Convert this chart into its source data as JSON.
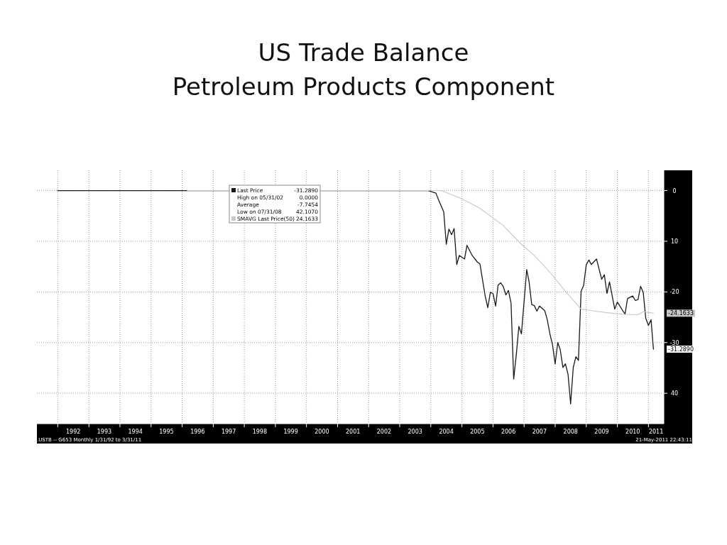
{
  "chart_data": {
    "type": "line",
    "title": "US Trade Balance",
    "subtitle": "Petroleum Products Component",
    "xlim": [
      "1991-05",
      "2011-07"
    ],
    "xticks": [
      {
        "value": "1992-01",
        "label": null
      },
      {
        "value": "1992-07",
        "label": "1992"
      },
      {
        "value": "1993-01",
        "label": null
      },
      {
        "value": "1993-07",
        "label": "1993"
      },
      {
        "value": "1994-01",
        "label": null
      },
      {
        "value": "1994-07",
        "label": "1994"
      },
      {
        "value": "1995-01",
        "label": null
      },
      {
        "value": "1995-07",
        "label": "1995"
      },
      {
        "value": "1996-01",
        "label": null
      },
      {
        "value": "1996-07",
        "label": "1996"
      },
      {
        "value": "1997-01",
        "label": null
      },
      {
        "value": "1997-07",
        "label": "1997"
      },
      {
        "value": "1998-01",
        "label": null
      },
      {
        "value": "1998-07",
        "label": "1998"
      },
      {
        "value": "1999-01",
        "label": null
      },
      {
        "value": "1999-07",
        "label": "1999"
      },
      {
        "value": "2000-01",
        "label": null
      },
      {
        "value": "2000-07",
        "label": "2000"
      },
      {
        "value": "2001-01",
        "label": null
      },
      {
        "value": "2001-07",
        "label": "2001"
      },
      {
        "value": "2002-01",
        "label": null
      },
      {
        "value": "2002-07",
        "label": "2002"
      },
      {
        "value": "2003-01",
        "label": null
      },
      {
        "value": "2003-07",
        "label": "2003"
      },
      {
        "value": "2004-01",
        "label": null
      },
      {
        "value": "2004-07",
        "label": "2004"
      },
      {
        "value": "2005-01",
        "label": null
      },
      {
        "value": "2005-07",
        "label": "2005"
      },
      {
        "value": "2006-01",
        "label": null
      },
      {
        "value": "2006-07",
        "label": "2006"
      },
      {
        "value": "2007-01",
        "label": null
      },
      {
        "value": "2007-07",
        "label": "2007"
      },
      {
        "value": "2008-01",
        "label": null
      },
      {
        "value": "2008-07",
        "label": "2008"
      },
      {
        "value": "2009-01",
        "label": null
      },
      {
        "value": "2009-07",
        "label": "2009"
      },
      {
        "value": "2010-01",
        "label": null
      },
      {
        "value": "2010-07",
        "label": "2010"
      },
      {
        "value": "2011-01",
        "label": null
      },
      {
        "value": "2011-04",
        "label": "2011"
      }
    ],
    "ylim": [
      -46,
      4
    ],
    "yticks": [
      {
        "value": 0,
        "label": "0"
      },
      {
        "value": -10,
        "label": "10"
      },
      {
        "value": -20,
        "label": "-20"
      },
      {
        "value": -30,
        "label": "-30"
      },
      {
        "value": -40,
        "label": "40"
      }
    ],
    "grid": true,
    "legend": "top",
    "line_style": "solid",
    "series": [
      {
        "name": "Last Price",
        "color": "#1a1a1a",
        "x": [
          "1992-01",
          "2003-12",
          "2004-03",
          "2004-04",
          "2004-05",
          "2004-06",
          "2004-07",
          "2004-08",
          "2004-09",
          "2004-10",
          "2004-11",
          "2004-12",
          "2005-02",
          "2005-03",
          "2005-05",
          "2005-07",
          "2005-08",
          "2005-10",
          "2005-11",
          "2005-12",
          "2006-01",
          "2006-02",
          "2006-03",
          "2006-04",
          "2006-05",
          "2006-06",
          "2006-07",
          "2006-08",
          "2006-09",
          "2006-10",
          "2006-11",
          "2006-12",
          "2007-02",
          "2007-03",
          "2007-04",
          "2007-05",
          "2007-06",
          "2007-07",
          "2007-09",
          "2007-10",
          "2007-11",
          "2007-12",
          "2008-01",
          "2008-02",
          "2008-03",
          "2008-04",
          "2008-05",
          "2008-06",
          "2008-07",
          "2008-08",
          "2008-09",
          "2008-10",
          "2008-11",
          "2008-12",
          "2009-01",
          "2009-02",
          "2009-03",
          "2009-05",
          "2009-07",
          "2009-08",
          "2009-09",
          "2009-10",
          "2009-12",
          "2010-01",
          "2010-04",
          "2010-05",
          "2010-07",
          "2010-08",
          "2010-09",
          "2010-10",
          "2010-11",
          "2010-12",
          "2011-01",
          "2011-02",
          "2011-03"
        ],
        "values": [
          0,
          0,
          -0.5,
          -1.8,
          -3,
          -4.2,
          -10.6,
          -7.6,
          -8.7,
          -7.5,
          -14.6,
          -12.8,
          -13.5,
          -10.8,
          -12.8,
          -14.1,
          -14.5,
          -20.8,
          -23.1,
          -20.1,
          -20.3,
          -22.8,
          -18.7,
          -18.2,
          -18.9,
          -20.6,
          -19.7,
          -22.2,
          -37.2,
          -32.5,
          -26.8,
          -28.3,
          -15.6,
          -18,
          -22.5,
          -22.7,
          -23.8,
          -22.8,
          -23.7,
          -25.5,
          -28.3,
          -30.4,
          -34.2,
          -30,
          -31.4,
          -34.9,
          -34.2,
          -36.3,
          -42.1,
          -34.9,
          -32.8,
          -33.5,
          -19.9,
          -18.7,
          -14.6,
          -13.7,
          -14.6,
          -13.5,
          -17.5,
          -16.6,
          -20.3,
          -18,
          -23.4,
          -22,
          -24.4,
          -21.3,
          -20.8,
          -21.7,
          -21.5,
          -18.9,
          -20.1,
          -25.2,
          -26.6,
          -25.5,
          -31.3
        ]
      },
      {
        "name": "SMAVG Last Price(50)",
        "color": "#c8c8c8",
        "x": [
          "1996-03",
          "2004-01",
          "2004-05",
          "2004-12",
          "2005-08",
          "2006-05",
          "2006-12",
          "2007-05",
          "2007-11",
          "2008-05",
          "2008-11",
          "2009-03",
          "2009-09",
          "2010-03",
          "2010-09",
          "2010-11",
          "2011-03"
        ],
        "values": [
          0,
          0,
          0,
          -1.4,
          -3.5,
          -6.9,
          -10.6,
          -12.8,
          -16.1,
          -19.9,
          -23.4,
          -23.7,
          -24.1,
          -24.4,
          -24.5,
          -23.9,
          -24.2
        ]
      }
    ],
    "annotations": [
      "-31.2890",
      "High on 05/31/02",
      "0.0000",
      "Average",
      "-7.7454",
      "Low on 07/31/08",
      "42.1070",
      "24.1633",
      "-24.1633",
      "-31.2890",
      ".USTB --  G653  Monthly  1/31/92 to 3/31/11",
      "21-May-2011 22:43:11"
    ]
  }
}
